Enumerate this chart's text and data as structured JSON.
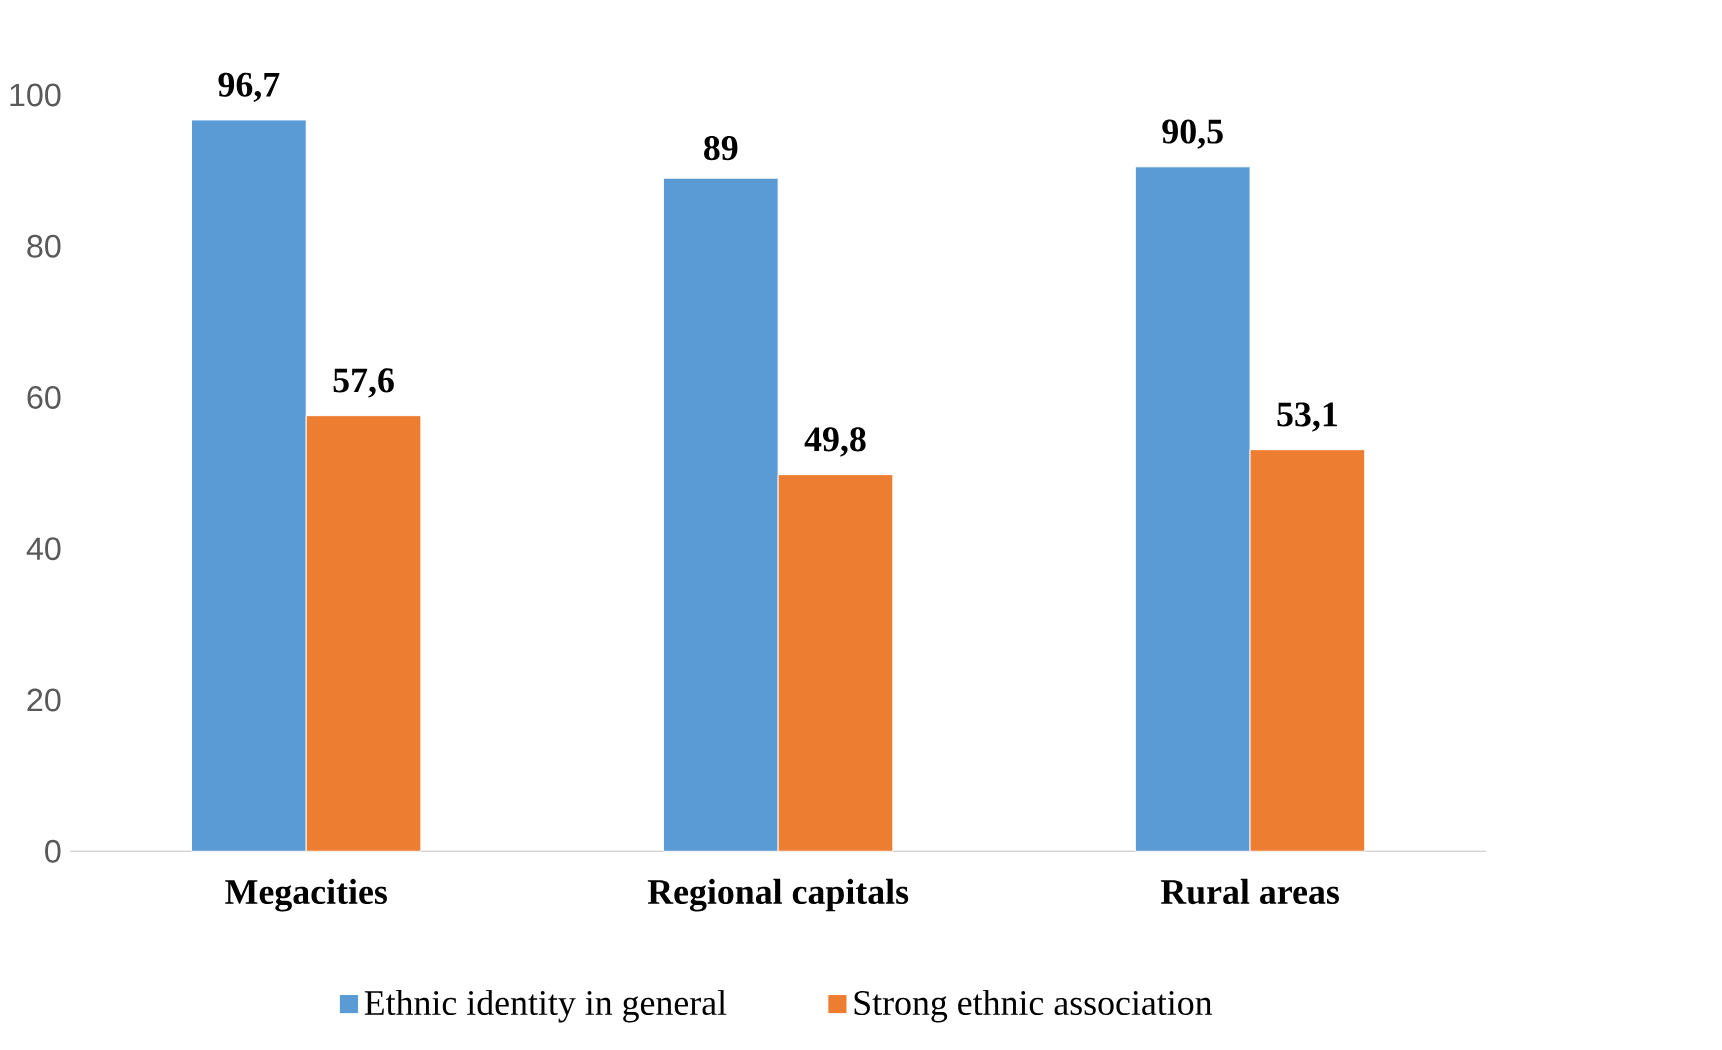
{
  "chart_data": {
    "type": "bar",
    "categories": [
      "Megacities",
      "Regional capitals",
      "Rural areas"
    ],
    "series": [
      {
        "name": "Ethnic identity in general",
        "color": "#5b9bd5",
        "values": [
          96.7,
          89,
          90.5
        ],
        "value_labels": [
          "96,7",
          "89",
          "90,5"
        ]
      },
      {
        "name": "Strong ethnic association",
        "color": "#ed7d31",
        "values": [
          57.6,
          49.8,
          53.1
        ],
        "value_labels": [
          "57,6",
          "49,8",
          "53,1"
        ]
      }
    ],
    "ylim": [
      0,
      100
    ],
    "yticks": [
      0,
      20,
      40,
      60,
      80,
      100
    ],
    "grid": false,
    "legend": "bottom"
  }
}
